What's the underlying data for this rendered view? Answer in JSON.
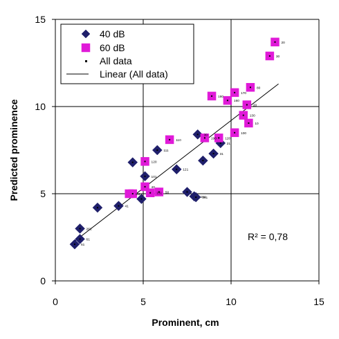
{
  "chart_data": {
    "type": "scatter",
    "xlabel": "Prominent, cm",
    "ylabel": "Predicted prominence",
    "xlim": [
      0,
      15
    ],
    "ylim": [
      0,
      15
    ],
    "xticks": [
      0,
      5,
      10,
      15
    ],
    "yticks": [
      0,
      5,
      10,
      15
    ],
    "grid": true,
    "legend_position": "top-left",
    "legend_entries": [
      "40 dB",
      "60 dB",
      "All data",
      "Linear (All data)"
    ],
    "series": [
      {
        "name": "40 dB",
        "color": "#1f1f6b",
        "marker": "diamond",
        "points": [
          {
            "x": 1.1,
            "y": 2.1,
            "label": "51"
          },
          {
            "x": 1.4,
            "y": 2.4,
            "label": "61"
          },
          {
            "x": 1.4,
            "y": 3.0,
            "label": "261"
          },
          {
            "x": 2.4,
            "y": 4.2,
            "label": ""
          },
          {
            "x": 3.6,
            "y": 4.3,
            "label": "41"
          },
          {
            "x": 4.4,
            "y": 6.8,
            "label": ""
          },
          {
            "x": 4.9,
            "y": 4.7,
            "label": ""
          },
          {
            "x": 5.1,
            "y": 6.0,
            "label": "101"
          },
          {
            "x": 5.8,
            "y": 7.5,
            "label": "111"
          },
          {
            "x": 6.9,
            "y": 6.4,
            "label": "121"
          },
          {
            "x": 7.5,
            "y": 5.1,
            "label": ""
          },
          {
            "x": 7.9,
            "y": 4.85,
            "label": "151"
          },
          {
            "x": 8.0,
            "y": 4.8,
            "label": "161"
          },
          {
            "x": 8.1,
            "y": 8.4,
            "label": "30"
          },
          {
            "x": 8.4,
            "y": 6.9,
            "label": ""
          },
          {
            "x": 9.0,
            "y": 7.3,
            "label": "31"
          },
          {
            "x": 9.4,
            "y": 7.9,
            "label": "21"
          }
        ]
      },
      {
        "name": "60 dB",
        "color": "#e01ad8",
        "marker": "square",
        "points": [
          {
            "x": 4.2,
            "y": 5.0,
            "label": "111"
          },
          {
            "x": 4.4,
            "y": 5.0,
            "label": ""
          },
          {
            "x": 5.1,
            "y": 6.85,
            "label": "120"
          },
          {
            "x": 5.1,
            "y": 5.4,
            "label": "40"
          },
          {
            "x": 5.4,
            "y": 5.05,
            "label": "151"
          },
          {
            "x": 5.9,
            "y": 5.1,
            "label": "50"
          },
          {
            "x": 6.5,
            "y": 8.1,
            "label": "110"
          },
          {
            "x": 8.5,
            "y": 8.2,
            "label": "190"
          },
          {
            "x": 8.9,
            "y": 10.6,
            "label": "180"
          },
          {
            "x": 9.3,
            "y": 8.2,
            "label": "120"
          },
          {
            "x": 9.8,
            "y": 10.35,
            "label": "160"
          },
          {
            "x": 10.2,
            "y": 10.8,
            "label": "170"
          },
          {
            "x": 10.2,
            "y": 8.5,
            "label": "100"
          },
          {
            "x": 10.7,
            "y": 9.5,
            "label": "130"
          },
          {
            "x": 10.9,
            "y": 10.1,
            "label": "20"
          },
          {
            "x": 11.0,
            "y": 9.05,
            "label": "10"
          },
          {
            "x": 11.1,
            "y": 11.1,
            "label": "80"
          },
          {
            "x": 12.2,
            "y": 12.9,
            "label": "30"
          },
          {
            "x": 12.5,
            "y": 13.7,
            "label": "20"
          }
        ]
      }
    ],
    "trendline": {
      "name": "Linear (All data)",
      "x": [
        1.0,
        12.7
      ],
      "y": [
        2.2,
        11.3
      ]
    },
    "annotation": "R² = 0,78"
  },
  "colors": {
    "series_40dB": "#1f1f6b",
    "series_60dB": "#e01ad8",
    "grid": "#000000",
    "all_data_marker": "#000000"
  }
}
